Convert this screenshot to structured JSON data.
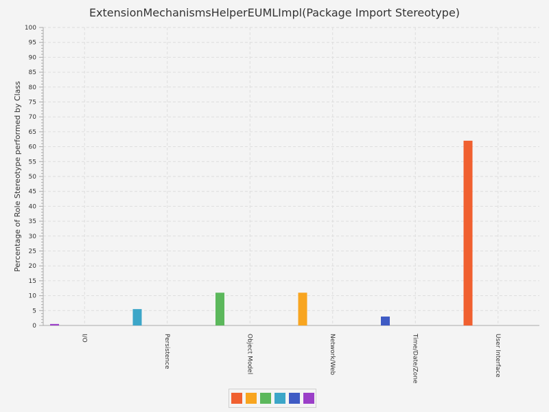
{
  "chart_data": {
    "type": "bar",
    "title": "ExtensionMechanismsHelperEUMLImpl(Package Import Stereotype)",
    "xlabel": "",
    "ylabel": "Percentage of Role Stereotype performed by Class",
    "ylim": [
      0,
      100
    ],
    "ytick_step": 5,
    "grid": true,
    "legend_position": "bottom",
    "categories": [
      "I/O",
      "Persistence",
      "Object Model",
      "Network/Web",
      "Time/Date/Zone",
      "User Interface"
    ],
    "series": [
      {
        "color": "#f06030",
        "values": [
          0,
          0,
          0,
          0,
          0,
          62
        ]
      },
      {
        "color": "#f8a520",
        "values": [
          0,
          0,
          0,
          11,
          0,
          0
        ]
      },
      {
        "color": "#5cb85c",
        "values": [
          0,
          0,
          11,
          0,
          0,
          0
        ]
      },
      {
        "color": "#3ca6c8",
        "values": [
          0,
          5.5,
          0,
          0,
          0,
          0
        ]
      },
      {
        "color": "#3f5bc4",
        "values": [
          0,
          0,
          0,
          0,
          3,
          0
        ]
      },
      {
        "color": "#9b3fc8",
        "values": [
          0.5,
          0,
          0,
          0,
          0,
          0
        ]
      }
    ]
  }
}
